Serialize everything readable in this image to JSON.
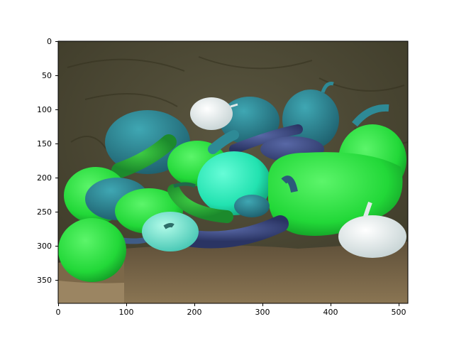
{
  "figure": {
    "background": "#ffffff",
    "frame_color": "#000000"
  },
  "image": {
    "description_colors": {
      "backdrop": "#4a4733",
      "cloth": "#6f5e45",
      "green_pepper": "#22d838",
      "teal_pepper": "#2e8a96",
      "cyan_pepper": "#2ee8b4",
      "blue_chili": "#3f4c86",
      "garlic": "#e6eeee"
    }
  },
  "axes": {
    "x_ticks": [
      "0",
      "100",
      "200",
      "300",
      "400",
      "500"
    ],
    "y_ticks": [
      "0",
      "50",
      "100",
      "150",
      "200",
      "250",
      "300",
      "350"
    ],
    "x_range": [
      0,
      512
    ],
    "y_range": [
      384,
      0
    ]
  }
}
